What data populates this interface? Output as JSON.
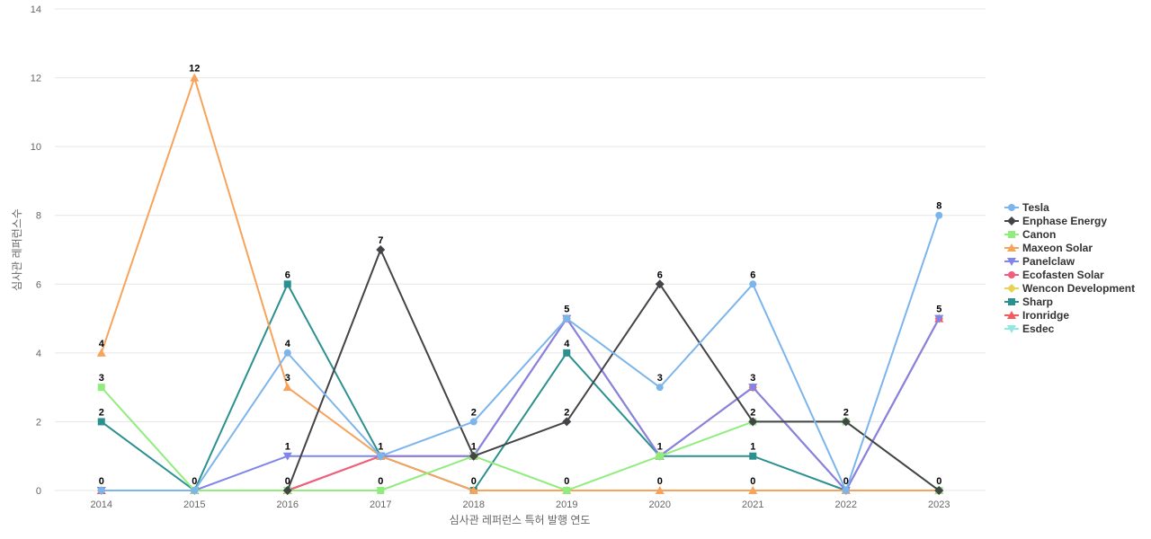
{
  "chart_data": {
    "type": "line",
    "title": "",
    "xlabel": "심사관 레퍼런스 특허 발행 연도",
    "ylabel": "심사관 레퍼런스수",
    "categories": [
      "2014",
      "2015",
      "2016",
      "2017",
      "2018",
      "2019",
      "2020",
      "2021",
      "2022",
      "2023"
    ],
    "ylim": [
      0,
      14
    ],
    "yticks": [
      0,
      2,
      4,
      6,
      8,
      10,
      12,
      14
    ],
    "grid": true,
    "legend_position": "right",
    "series": [
      {
        "name": "Tesla",
        "color": "#7cb5ec",
        "marker": "circle",
        "values": [
          0,
          0,
          4,
          1,
          2,
          5,
          3,
          6,
          0,
          8
        ]
      },
      {
        "name": "Enphase Energy",
        "color": "#434348",
        "marker": "diamond",
        "values": [
          null,
          null,
          0,
          7,
          1,
          2,
          6,
          2,
          2,
          0
        ]
      },
      {
        "name": "Canon",
        "color": "#90ed7d",
        "marker": "square",
        "values": [
          3,
          0,
          0,
          0,
          1,
          0,
          1,
          2,
          2,
          0
        ]
      },
      {
        "name": "Maxeon Solar",
        "color": "#f7a35c",
        "marker": "triangle",
        "values": [
          4,
          12,
          3,
          1,
          0,
          0,
          0,
          0,
          0,
          0
        ]
      },
      {
        "name": "Panelclaw",
        "color": "#8085e9",
        "marker": "triangle-down",
        "values": [
          0,
          0,
          1,
          1,
          1,
          5,
          1,
          3,
          0,
          5
        ]
      },
      {
        "name": "Ecofasten Solar",
        "color": "#f15c80",
        "marker": "circle",
        "values": [
          0,
          0,
          0,
          1,
          1,
          5,
          1,
          3,
          0,
          5
        ]
      },
      {
        "name": "Wencon Development",
        "color": "#e4d354",
        "marker": "diamond",
        "values": [
          0,
          0,
          0,
          1,
          1,
          5,
          1,
          3,
          0,
          5
        ]
      },
      {
        "name": "Sharp",
        "color": "#2b908f",
        "marker": "square",
        "values": [
          2,
          0,
          6,
          1,
          0,
          4,
          1,
          1,
          0,
          0
        ]
      },
      {
        "name": "Ironridge",
        "color": "#f45b5b",
        "marker": "triangle",
        "values": [
          0,
          0,
          0,
          1,
          1,
          5,
          1,
          3,
          0,
          5
        ]
      },
      {
        "name": "Esdec",
        "color": "#91e8e1",
        "marker": "triangle-down",
        "values": [
          0,
          0,
          0,
          1,
          1,
          5,
          1,
          3,
          0,
          5
        ]
      }
    ],
    "data_labels": [
      {
        "x": "2014",
        "y": 4,
        "text": "4"
      },
      {
        "x": "2014",
        "y": 3,
        "text": "3"
      },
      {
        "x": "2014",
        "y": 2,
        "text": "2"
      },
      {
        "x": "2014",
        "y": 0,
        "text": "0"
      },
      {
        "x": "2015",
        "y": 12,
        "text": "12"
      },
      {
        "x": "2015",
        "y": 0,
        "text": "0"
      },
      {
        "x": "2016",
        "y": 6,
        "text": "6"
      },
      {
        "x": "2016",
        "y": 4,
        "text": "4"
      },
      {
        "x": "2016",
        "y": 3,
        "text": "3"
      },
      {
        "x": "2016",
        "y": 1,
        "text": "1"
      },
      {
        "x": "2016",
        "y": 0,
        "text": "0"
      },
      {
        "x": "2017",
        "y": 7,
        "text": "7"
      },
      {
        "x": "2017",
        "y": 1,
        "text": "1"
      },
      {
        "x": "2017",
        "y": 0,
        "text": "0"
      },
      {
        "x": "2018",
        "y": 2,
        "text": "2"
      },
      {
        "x": "2018",
        "y": 1,
        "text": "1"
      },
      {
        "x": "2018",
        "y": 0,
        "text": "0"
      },
      {
        "x": "2019",
        "y": 5,
        "text": "5"
      },
      {
        "x": "2019",
        "y": 4,
        "text": "4"
      },
      {
        "x": "2019",
        "y": 2,
        "text": "2"
      },
      {
        "x": "2019",
        "y": 0,
        "text": "0"
      },
      {
        "x": "2020",
        "y": 6,
        "text": "6"
      },
      {
        "x": "2020",
        "y": 3,
        "text": "3"
      },
      {
        "x": "2020",
        "y": 1,
        "text": "1"
      },
      {
        "x": "2020",
        "y": 0,
        "text": "0"
      },
      {
        "x": "2021",
        "y": 6,
        "text": "6"
      },
      {
        "x": "2021",
        "y": 3,
        "text": "3"
      },
      {
        "x": "2021",
        "y": 2,
        "text": "2"
      },
      {
        "x": "2021",
        "y": 1,
        "text": "1"
      },
      {
        "x": "2021",
        "y": 0,
        "text": "0"
      },
      {
        "x": "2022",
        "y": 2,
        "text": "2"
      },
      {
        "x": "2022",
        "y": 0,
        "text": "0"
      },
      {
        "x": "2023",
        "y": 8,
        "text": "8"
      },
      {
        "x": "2023",
        "y": 5,
        "text": "5"
      },
      {
        "x": "2023",
        "y": 0,
        "text": "0"
      }
    ]
  }
}
